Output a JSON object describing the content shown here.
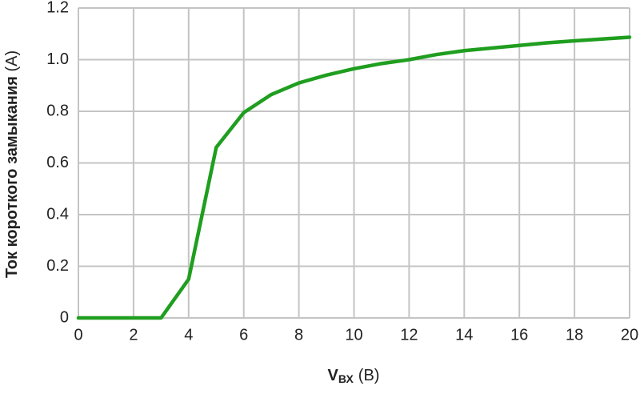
{
  "chart_data": {
    "type": "line",
    "y_label": {
      "text": "Ток короткого замыкания",
      "unit": "(А)"
    },
    "x_label": {
      "symbol": "V",
      "subscript": "ВХ",
      "unit": "(В)"
    },
    "x": [
      0,
      1,
      2,
      3,
      4,
      5,
      6,
      7,
      8,
      9,
      10,
      11,
      12,
      13,
      14,
      15,
      16,
      17,
      18,
      19,
      20
    ],
    "series": [
      {
        "color": "#1f9e1f",
        "values": [
          0,
          0,
          0,
          0,
          0.15,
          0.66,
          0.795,
          0.865,
          0.91,
          0.94,
          0.965,
          0.985,
          1.0,
          1.02,
          1.035,
          1.045,
          1.055,
          1.065,
          1.073,
          1.08,
          1.087
        ]
      }
    ],
    "xlim": [
      0,
      20
    ],
    "xticks": [
      0,
      2,
      4,
      6,
      8,
      10,
      12,
      14,
      16,
      18,
      20
    ],
    "ylim": [
      0,
      1.2
    ],
    "yticks": [
      0,
      0.2,
      0.4,
      0.6,
      0.8,
      {
        "value": 1,
        "label": "1.0"
      },
      1.2
    ],
    "grid": true
  }
}
